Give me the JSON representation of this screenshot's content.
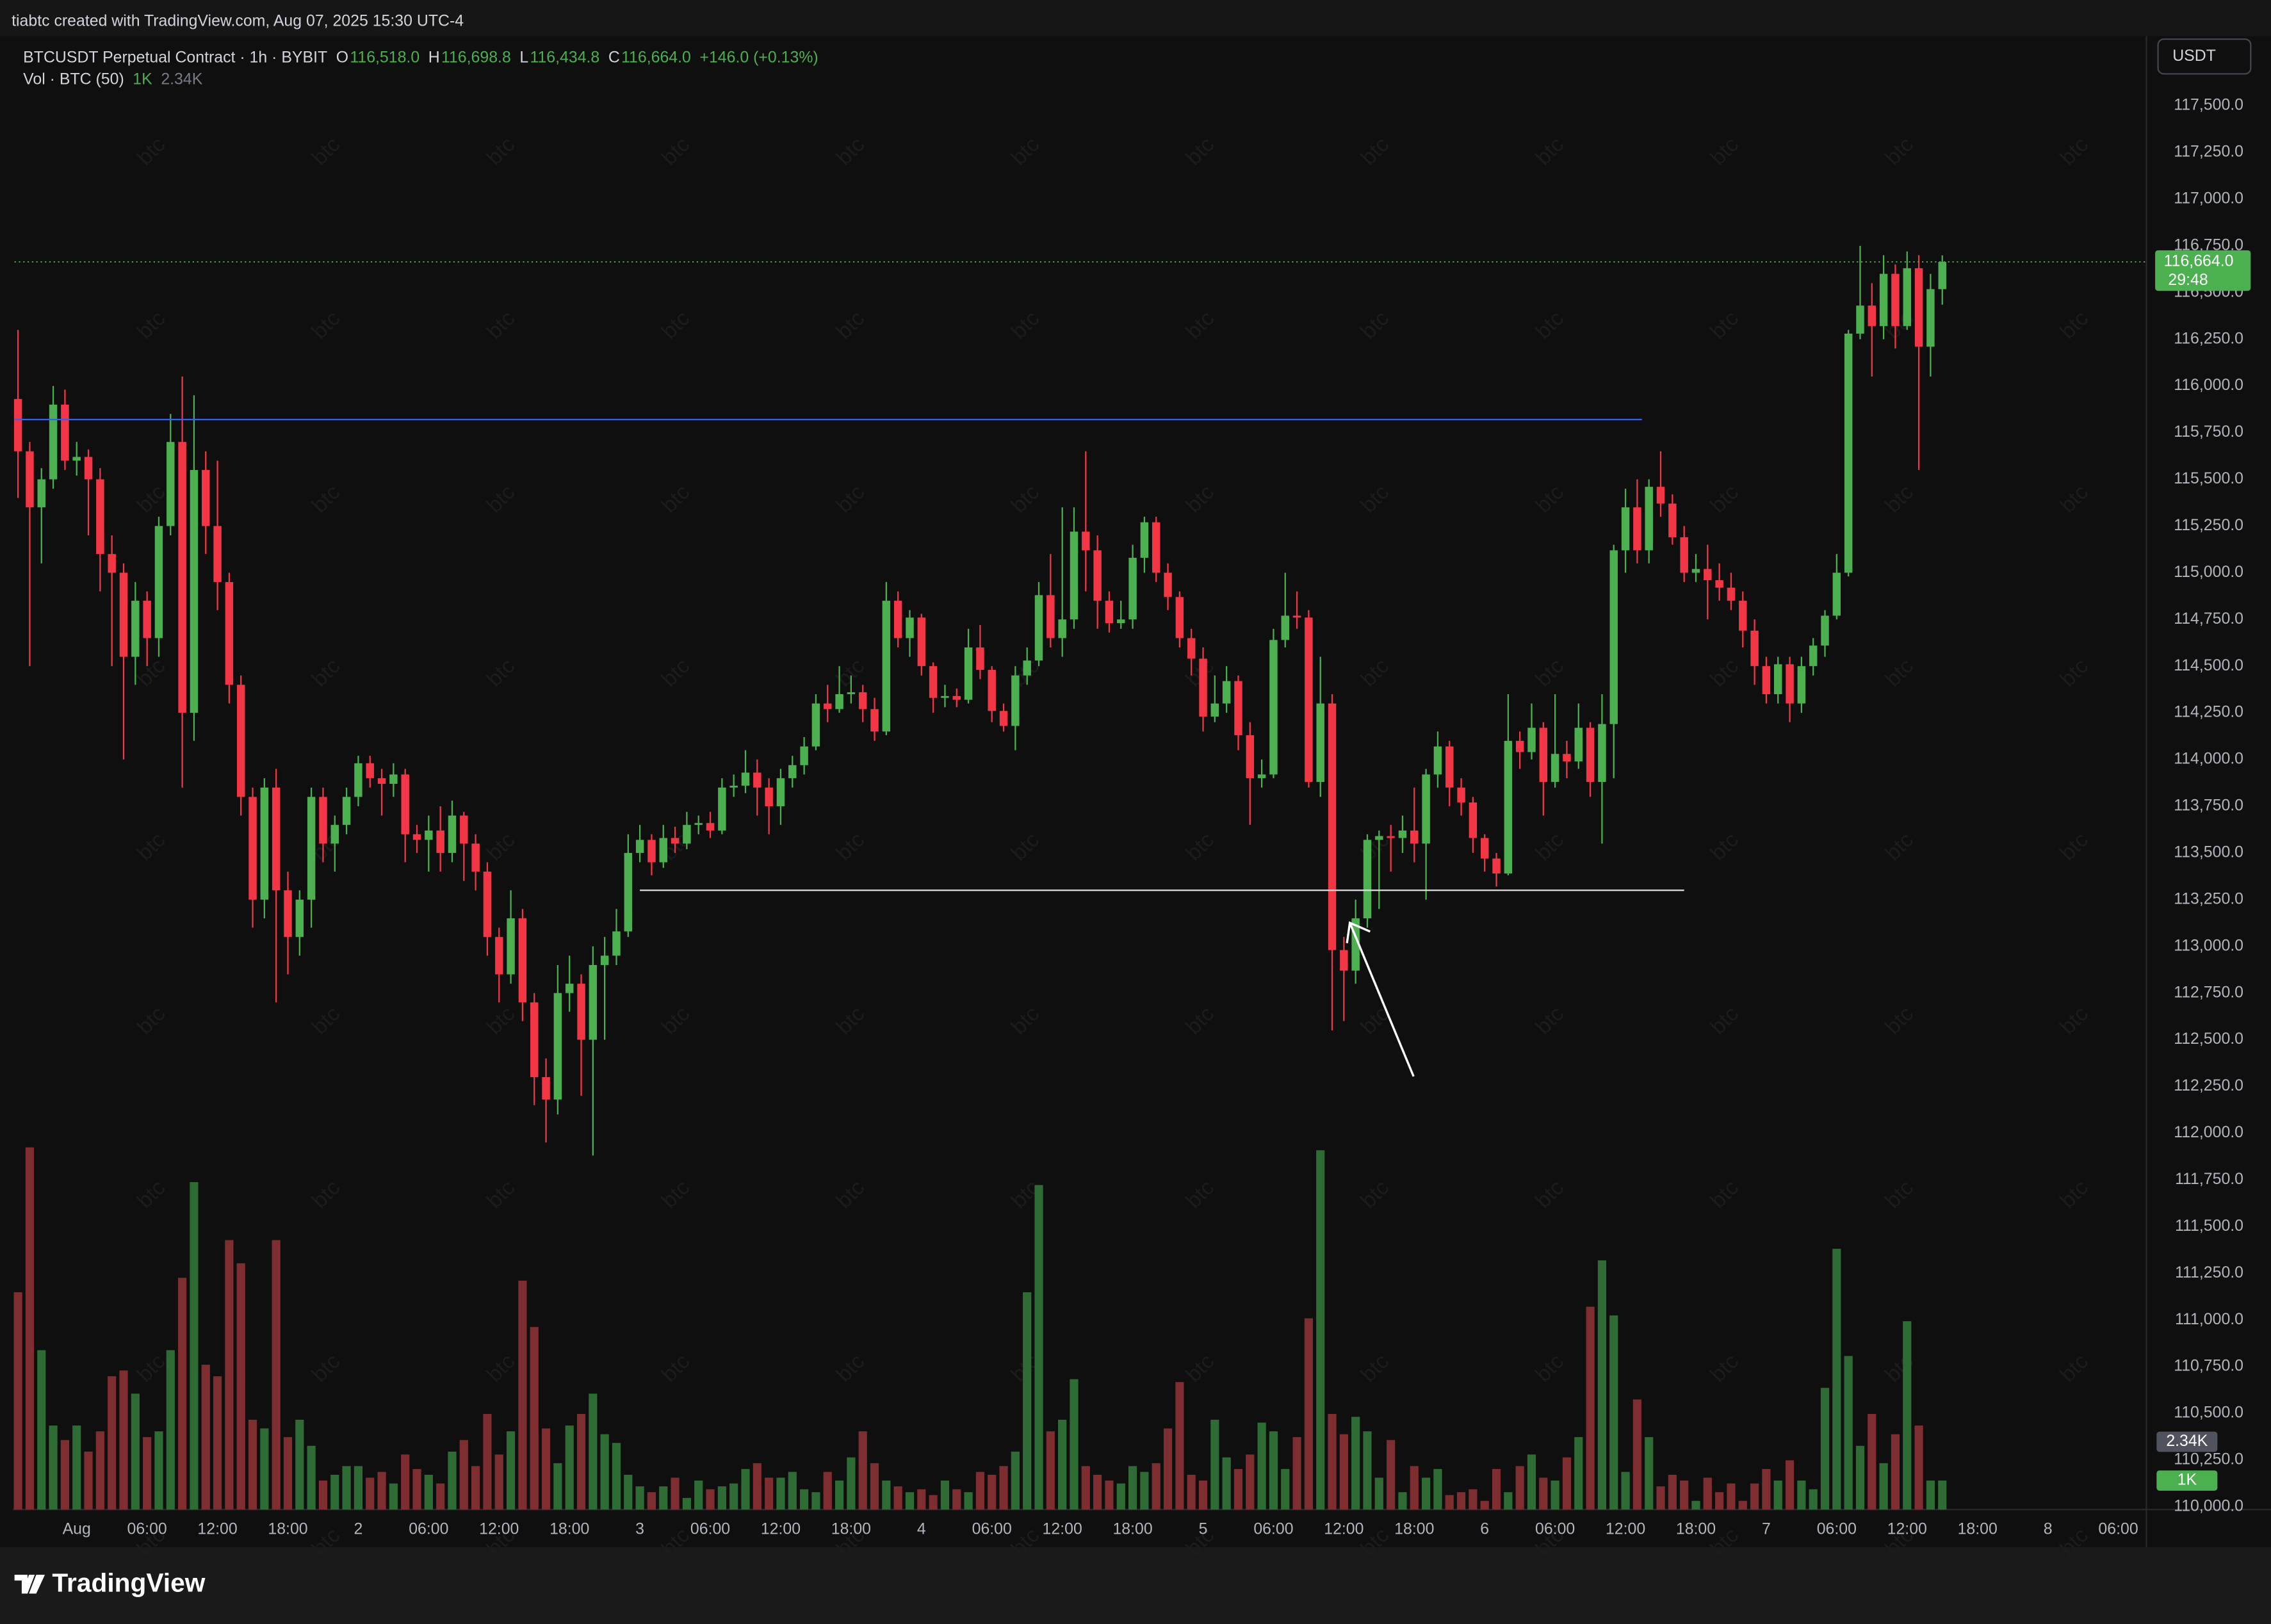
{
  "header": {
    "credit": "tiabtc created with TradingView.com, Aug 07, 2025 15:30 UTC-4",
    "symbol": "BTCUSDT Perpetual Contract · 1h · BYBIT",
    "ohlc": [
      {
        "label": "O",
        "value": "116,518.0"
      },
      {
        "label": "H",
        "value": "116,698.8"
      },
      {
        "label": "L",
        "value": "116,434.8"
      },
      {
        "label": "C",
        "value": "116,664.0"
      }
    ],
    "change": "+146.0 (+0.13%)",
    "indicator": "Vol · BTC (50)",
    "currency": "USDT",
    "countdown": "29:48",
    "watermark": "btc",
    "logo": "TradingView"
  },
  "chart_data": {
    "type": "candlestick",
    "up_color": "#4caf50",
    "down_color": "#f23645",
    "volume_up_color": "#2f6b35",
    "volume_down_color": "#7e2d31",
    "open": [
      115930,
      115650,
      115350,
      115500,
      115900,
      115600,
      115620,
      115500,
      115100,
      115000,
      114550,
      114850,
      114650,
      115250,
      115700,
      114250,
      115550,
      115250,
      114950,
      114400,
      113800,
      113250,
      113850,
      113300,
      113050,
      113250,
      113800,
      113550,
      113650,
      113800,
      113980,
      113900,
      113870,
      113920,
      113600,
      113570,
      113620,
      113500,
      113700,
      113550,
      113400,
      113050,
      112850,
      113150,
      112700,
      112300,
      112180,
      112750,
      112800,
      112500,
      112900,
      112950,
      113080,
      113500,
      113570,
      113450,
      113580,
      113550,
      113650,
      113660,
      113620,
      113850,
      113860,
      113930,
      113850,
      113750,
      113900,
      113970,
      114070,
      114300,
      114270,
      114350,
      114360,
      114270,
      114150,
      114850,
      114650,
      114760,
      114500,
      114330,
      114340,
      114320,
      114600,
      114480,
      114260,
      114180,
      114450,
      114530,
      114880,
      114650,
      114750,
      115220,
      115120,
      114850,
      114730,
      114750,
      115080,
      115270,
      115000,
      114870,
      114650,
      114540,
      114230,
      114300,
      114420,
      114130,
      113900,
      113920,
      114640,
      114770,
      114760,
      113880,
      114300,
      112980,
      112870,
      113150,
      113570,
      113590,
      113580,
      113620,
      113550,
      113920,
      114070,
      113850,
      113770,
      113580,
      113470,
      113390,
      114100,
      114040,
      114170,
      113880,
      114030,
      113990,
      114170,
      113880,
      114190,
      115120,
      115350,
      115120,
      115460,
      115370,
      115190,
      115000,
      115020,
      114960,
      114920,
      114850,
      114690,
      114500,
      114350,
      114510,
      114300,
      114500,
      114610,
      114770,
      115000,
      116280,
      116430,
      116320,
      116600,
      116320,
      116630,
      116210,
      116518
    ],
    "high": [
      116300,
      115700,
      115560,
      116000,
      115980,
      115700,
      115660,
      115560,
      115200,
      115050,
      114950,
      114900,
      115300,
      115850,
      116050,
      115950,
      115650,
      115600,
      115000,
      114450,
      113850,
      113900,
      113950,
      113400,
      113300,
      113850,
      113850,
      113700,
      113850,
      114020,
      114020,
      113950,
      113980,
      113950,
      113650,
      113700,
      113750,
      113780,
      113720,
      113600,
      113450,
      113100,
      113300,
      113200,
      112750,
      112400,
      112900,
      112950,
      112850,
      113000,
      113050,
      113200,
      113600,
      113650,
      113600,
      113650,
      113640,
      113720,
      113700,
      113720,
      113900,
      113920,
      114050,
      114000,
      113900,
      113950,
      114020,
      114120,
      114350,
      114400,
      114500,
      114450,
      114400,
      114330,
      114950,
      114900,
      114800,
      114780,
      114520,
      114400,
      114380,
      114700,
      114720,
      114500,
      114300,
      114500,
      114600,
      114950,
      115100,
      115350,
      115350,
      115650,
      115200,
      114900,
      114850,
      115150,
      115300,
      115300,
      115050,
      114900,
      114700,
      114600,
      114450,
      114500,
      114450,
      114200,
      114000,
      114700,
      115000,
      114900,
      114800,
      114550,
      114350,
      113050,
      113250,
      113600,
      113620,
      113650,
      113700,
      113850,
      113950,
      114150,
      114100,
      113900,
      113800,
      113600,
      113500,
      114350,
      114150,
      114300,
      114200,
      114350,
      114100,
      114300,
      114200,
      114350,
      115150,
      115450,
      115500,
      115500,
      115650,
      115420,
      115250,
      115100,
      115150,
      115050,
      115000,
      114900,
      114750,
      114550,
      114550,
      114550,
      114550,
      114650,
      114800,
      115100,
      116300,
      116750,
      116550,
      116700,
      116650,
      116720,
      116700,
      116600,
      116698.8
    ],
    "low": [
      115400,
      114500,
      115050,
      115450,
      115550,
      115520,
      115200,
      114900,
      114500,
      114000,
      114400,
      114500,
      114550,
      115200,
      113850,
      114100,
      115100,
      114800,
      114300,
      113700,
      113100,
      113150,
      112700,
      112850,
      112950,
      113100,
      113450,
      113400,
      113600,
      113750,
      113850,
      113700,
      113800,
      113450,
      113500,
      113400,
      113400,
      113450,
      113350,
      113300,
      112950,
      112700,
      112800,
      112600,
      112150,
      111950,
      112100,
      112650,
      112200,
      111880,
      112500,
      112900,
      113050,
      113450,
      113380,
      113420,
      113500,
      113520,
      113600,
      113580,
      113600,
      113800,
      113820,
      113700,
      113600,
      113650,
      113850,
      113920,
      114050,
      114200,
      114250,
      114300,
      114200,
      114100,
      114130,
      114600,
      114550,
      114450,
      114250,
      114280,
      114280,
      114300,
      114430,
      114200,
      114150,
      114050,
      114400,
      114500,
      114600,
      114550,
      114700,
      114900,
      114700,
      114680,
      114700,
      114700,
      115000,
      114950,
      114800,
      114600,
      114450,
      114150,
      114200,
      114250,
      114050,
      113650,
      113850,
      113900,
      114600,
      114700,
      113850,
      113800,
      112550,
      112600,
      112800,
      113100,
      113200,
      113400,
      113500,
      113450,
      113250,
      113850,
      113750,
      113700,
      113500,
      113400,
      113320,
      113380,
      113950,
      114000,
      113700,
      113850,
      113900,
      113950,
      113800,
      113550,
      113900,
      115000,
      115050,
      115050,
      115300,
      115150,
      114950,
      114950,
      114750,
      114850,
      114800,
      114600,
      114400,
      114300,
      114300,
      114200,
      114250,
      114450,
      114550,
      114750,
      114980,
      116250,
      116050,
      116250,
      116200,
      116300,
      115550,
      116050,
      116434.8
    ],
    "close": [
      115650,
      115350,
      115500,
      115900,
      115600,
      115620,
      115500,
      115100,
      115000,
      114550,
      114850,
      114650,
      115250,
      115700,
      114250,
      115550,
      115250,
      114950,
      114400,
      113800,
      113250,
      113850,
      113300,
      113050,
      113250,
      113800,
      113550,
      113650,
      113800,
      113980,
      113900,
      113870,
      113920,
      113600,
      113570,
      113620,
      113500,
      113700,
      113550,
      113400,
      113050,
      112850,
      113150,
      112700,
      112300,
      112180,
      112750,
      112800,
      112500,
      112900,
      112950,
      113080,
      113500,
      113570,
      113450,
      113580,
      113550,
      113650,
      113660,
      113620,
      113850,
      113860,
      113930,
      113850,
      113750,
      113900,
      113970,
      114070,
      114300,
      114270,
      114350,
      114360,
      114270,
      114150,
      114850,
      114650,
      114760,
      114500,
      114330,
      114340,
      114320,
      114600,
      114480,
      114260,
      114180,
      114450,
      114530,
      114880,
      114650,
      114750,
      115220,
      115120,
      114850,
      114730,
      114750,
      115080,
      115270,
      115000,
      114870,
      114650,
      114540,
      114230,
      114300,
      114420,
      114130,
      113900,
      113920,
      114640,
      114770,
      114760,
      113880,
      114300,
      112980,
      112870,
      113150,
      113570,
      113590,
      113580,
      113620,
      113550,
      113920,
      114070,
      113850,
      113770,
      113580,
      113470,
      113390,
      114100,
      114040,
      114170,
      113880,
      114030,
      113990,
      114170,
      113880,
      114190,
      115120,
      115350,
      115120,
      115460,
      115370,
      115190,
      115000,
      115020,
      114960,
      114920,
      114850,
      114690,
      114500,
      114350,
      114510,
      114300,
      114500,
      114610,
      114770,
      115000,
      116280,
      116430,
      116320,
      116600,
      116320,
      116630,
      116210,
      116518,
      116664
    ],
    "volume": {
      "axis": "y2",
      "values": [
        7500,
        12500,
        5500,
        2900,
        2400,
        2900,
        2000,
        2700,
        4600,
        4800,
        4000,
        2500,
        2700,
        5500,
        8000,
        11300,
        5000,
        4600,
        9300,
        8500,
        3100,
        2800,
        9300,
        2500,
        3100,
        2200,
        1000,
        1200,
        1500,
        1500,
        1100,
        1300,
        900,
        1900,
        1400,
        1200,
        900,
        2000,
        2400,
        1500,
        3300,
        1900,
        2700,
        7900,
        6300,
        2800,
        1600,
        2900,
        3300,
        4000,
        2600,
        2300,
        1200,
        800,
        600,
        800,
        1100,
        400,
        1000,
        700,
        800,
        900,
        1400,
        1600,
        1100,
        1100,
        1300,
        700,
        600,
        1300,
        1000,
        1800,
        2700,
        1600,
        1000,
        800,
        600,
        700,
        500,
        1000,
        700,
        600,
        1300,
        1200,
        1500,
        2000,
        7500,
        11200,
        2700,
        3100,
        4500,
        1500,
        1200,
        1000,
        900,
        1500,
        1300,
        1600,
        2800,
        4400,
        1200,
        1000,
        3100,
        1800,
        1400,
        1900,
        3000,
        2700,
        1400,
        2500,
        6600,
        12400,
        3300,
        2600,
        3200,
        2700,
        1100,
        2400,
        600,
        1500,
        1100,
        1400,
        500,
        600,
        700,
        300,
        1400,
        600,
        1500,
        1900,
        1100,
        1000,
        1800,
        2500,
        7000,
        8600,
        6700,
        1300,
        3800,
        2500,
        800,
        1200,
        1000,
        300,
        1100,
        600,
        900,
        300,
        900,
        1400,
        1000,
        1700,
        1000,
        700,
        4200,
        9000,
        5300,
        2200,
        3300,
        1600,
        2600,
        6500,
        2900,
        1000,
        1000
      ]
    },
    "xlim": [
      -0.3,
      181.4
    ],
    "ylim": [
      109985,
      117872
    ],
    "y2lim": [
      0,
      50850
    ],
    "xticks": [
      {
        "value": 5,
        "label": "Aug"
      },
      {
        "value": 11,
        "label": "06:00"
      },
      {
        "value": 17,
        "label": "12:00"
      },
      {
        "value": 23,
        "label": "18:00"
      },
      {
        "value": 29,
        "label": "2"
      },
      {
        "value": 35,
        "label": "06:00"
      },
      {
        "value": 41,
        "label": "12:00"
      },
      {
        "value": 47,
        "label": "18:00"
      },
      {
        "value": 53,
        "label": "3"
      },
      {
        "value": 59,
        "label": "06:00"
      },
      {
        "value": 65,
        "label": "12:00"
      },
      {
        "value": 71,
        "label": "18:00"
      },
      {
        "value": 77,
        "label": "4"
      },
      {
        "value": 83,
        "label": "06:00"
      },
      {
        "value": 89,
        "label": "12:00"
      },
      {
        "value": 95,
        "label": "18:00"
      },
      {
        "value": 101,
        "label": "5"
      },
      {
        "value": 107,
        "label": "06:00"
      },
      {
        "value": 113,
        "label": "12:00"
      },
      {
        "value": 119,
        "label": "18:00"
      },
      {
        "value": 125,
        "label": "6"
      },
      {
        "value": 131,
        "label": "06:00"
      },
      {
        "value": 137,
        "label": "12:00"
      },
      {
        "value": 143,
        "label": "18:00"
      },
      {
        "value": 149,
        "label": "7"
      },
      {
        "value": 155,
        "label": "06:00"
      },
      {
        "value": 161,
        "label": "12:00"
      },
      {
        "value": 167,
        "label": "18:00"
      },
      {
        "value": 173,
        "label": "8"
      },
      {
        "value": 179,
        "label": "06:00"
      }
    ],
    "yticks": [
      {
        "value": 110000,
        "label": "110,000.0"
      },
      {
        "value": 110250,
        "label": "110,250.0"
      },
      {
        "value": 110500,
        "label": "110,500.0"
      },
      {
        "value": 110750,
        "label": "110,750.0"
      },
      {
        "value": 111000,
        "label": "111,000.0"
      },
      {
        "value": 111250,
        "label": "111,250.0"
      },
      {
        "value": 111500,
        "label": "111,500.0"
      },
      {
        "value": 111750,
        "label": "111,750.0"
      },
      {
        "value": 112000,
        "label": "112,000.0"
      },
      {
        "value": 112250,
        "label": "112,250.0"
      },
      {
        "value": 112500,
        "label": "112,500.0"
      },
      {
        "value": 112750,
        "label": "112,750.0"
      },
      {
        "value": 113000,
        "label": "113,000.0"
      },
      {
        "value": 113250,
        "label": "113,250.0"
      },
      {
        "value": 113500,
        "label": "113,500.0"
      },
      {
        "value": 113750,
        "label": "113,750.0"
      },
      {
        "value": 114000,
        "label": "114,000.0"
      },
      {
        "value": 114250,
        "label": "114,250.0"
      },
      {
        "value": 114500,
        "label": "114,500.0"
      },
      {
        "value": 114750,
        "label": "114,750.0"
      },
      {
        "value": 115000,
        "label": "115,000.0"
      },
      {
        "value": 115250,
        "label": "115,250.0"
      },
      {
        "value": 115500,
        "label": "115,500.0"
      },
      {
        "value": 115750,
        "label": "115,750.0"
      },
      {
        "value": 116000,
        "label": "116,000.0"
      },
      {
        "value": 116250,
        "label": "116,250.0"
      },
      {
        "value": 116500,
        "label": "116,500.0"
      },
      {
        "value": 116750,
        "label": "116,750.0"
      },
      {
        "value": 117000,
        "label": "117,000.0"
      },
      {
        "value": 117250,
        "label": "117,250.0"
      },
      {
        "value": 117500,
        "label": "117,500.0"
      }
    ],
    "grid": false,
    "last_price": {
      "value": 116664,
      "label": "116,664.0"
    },
    "y2_markers": [
      {
        "value": 2340,
        "label": "2.34K",
        "color": "#50535e"
      },
      {
        "value": 1000,
        "label": "1K",
        "color": "#4caf50"
      }
    ],
    "lines": [
      {
        "value": 115820,
        "start": -0.3,
        "end": 138.4,
        "color": "#2962ff"
      },
      {
        "value": 113300,
        "start": 53,
        "end": 142,
        "color": "#e0e0e0"
      }
    ]
  }
}
